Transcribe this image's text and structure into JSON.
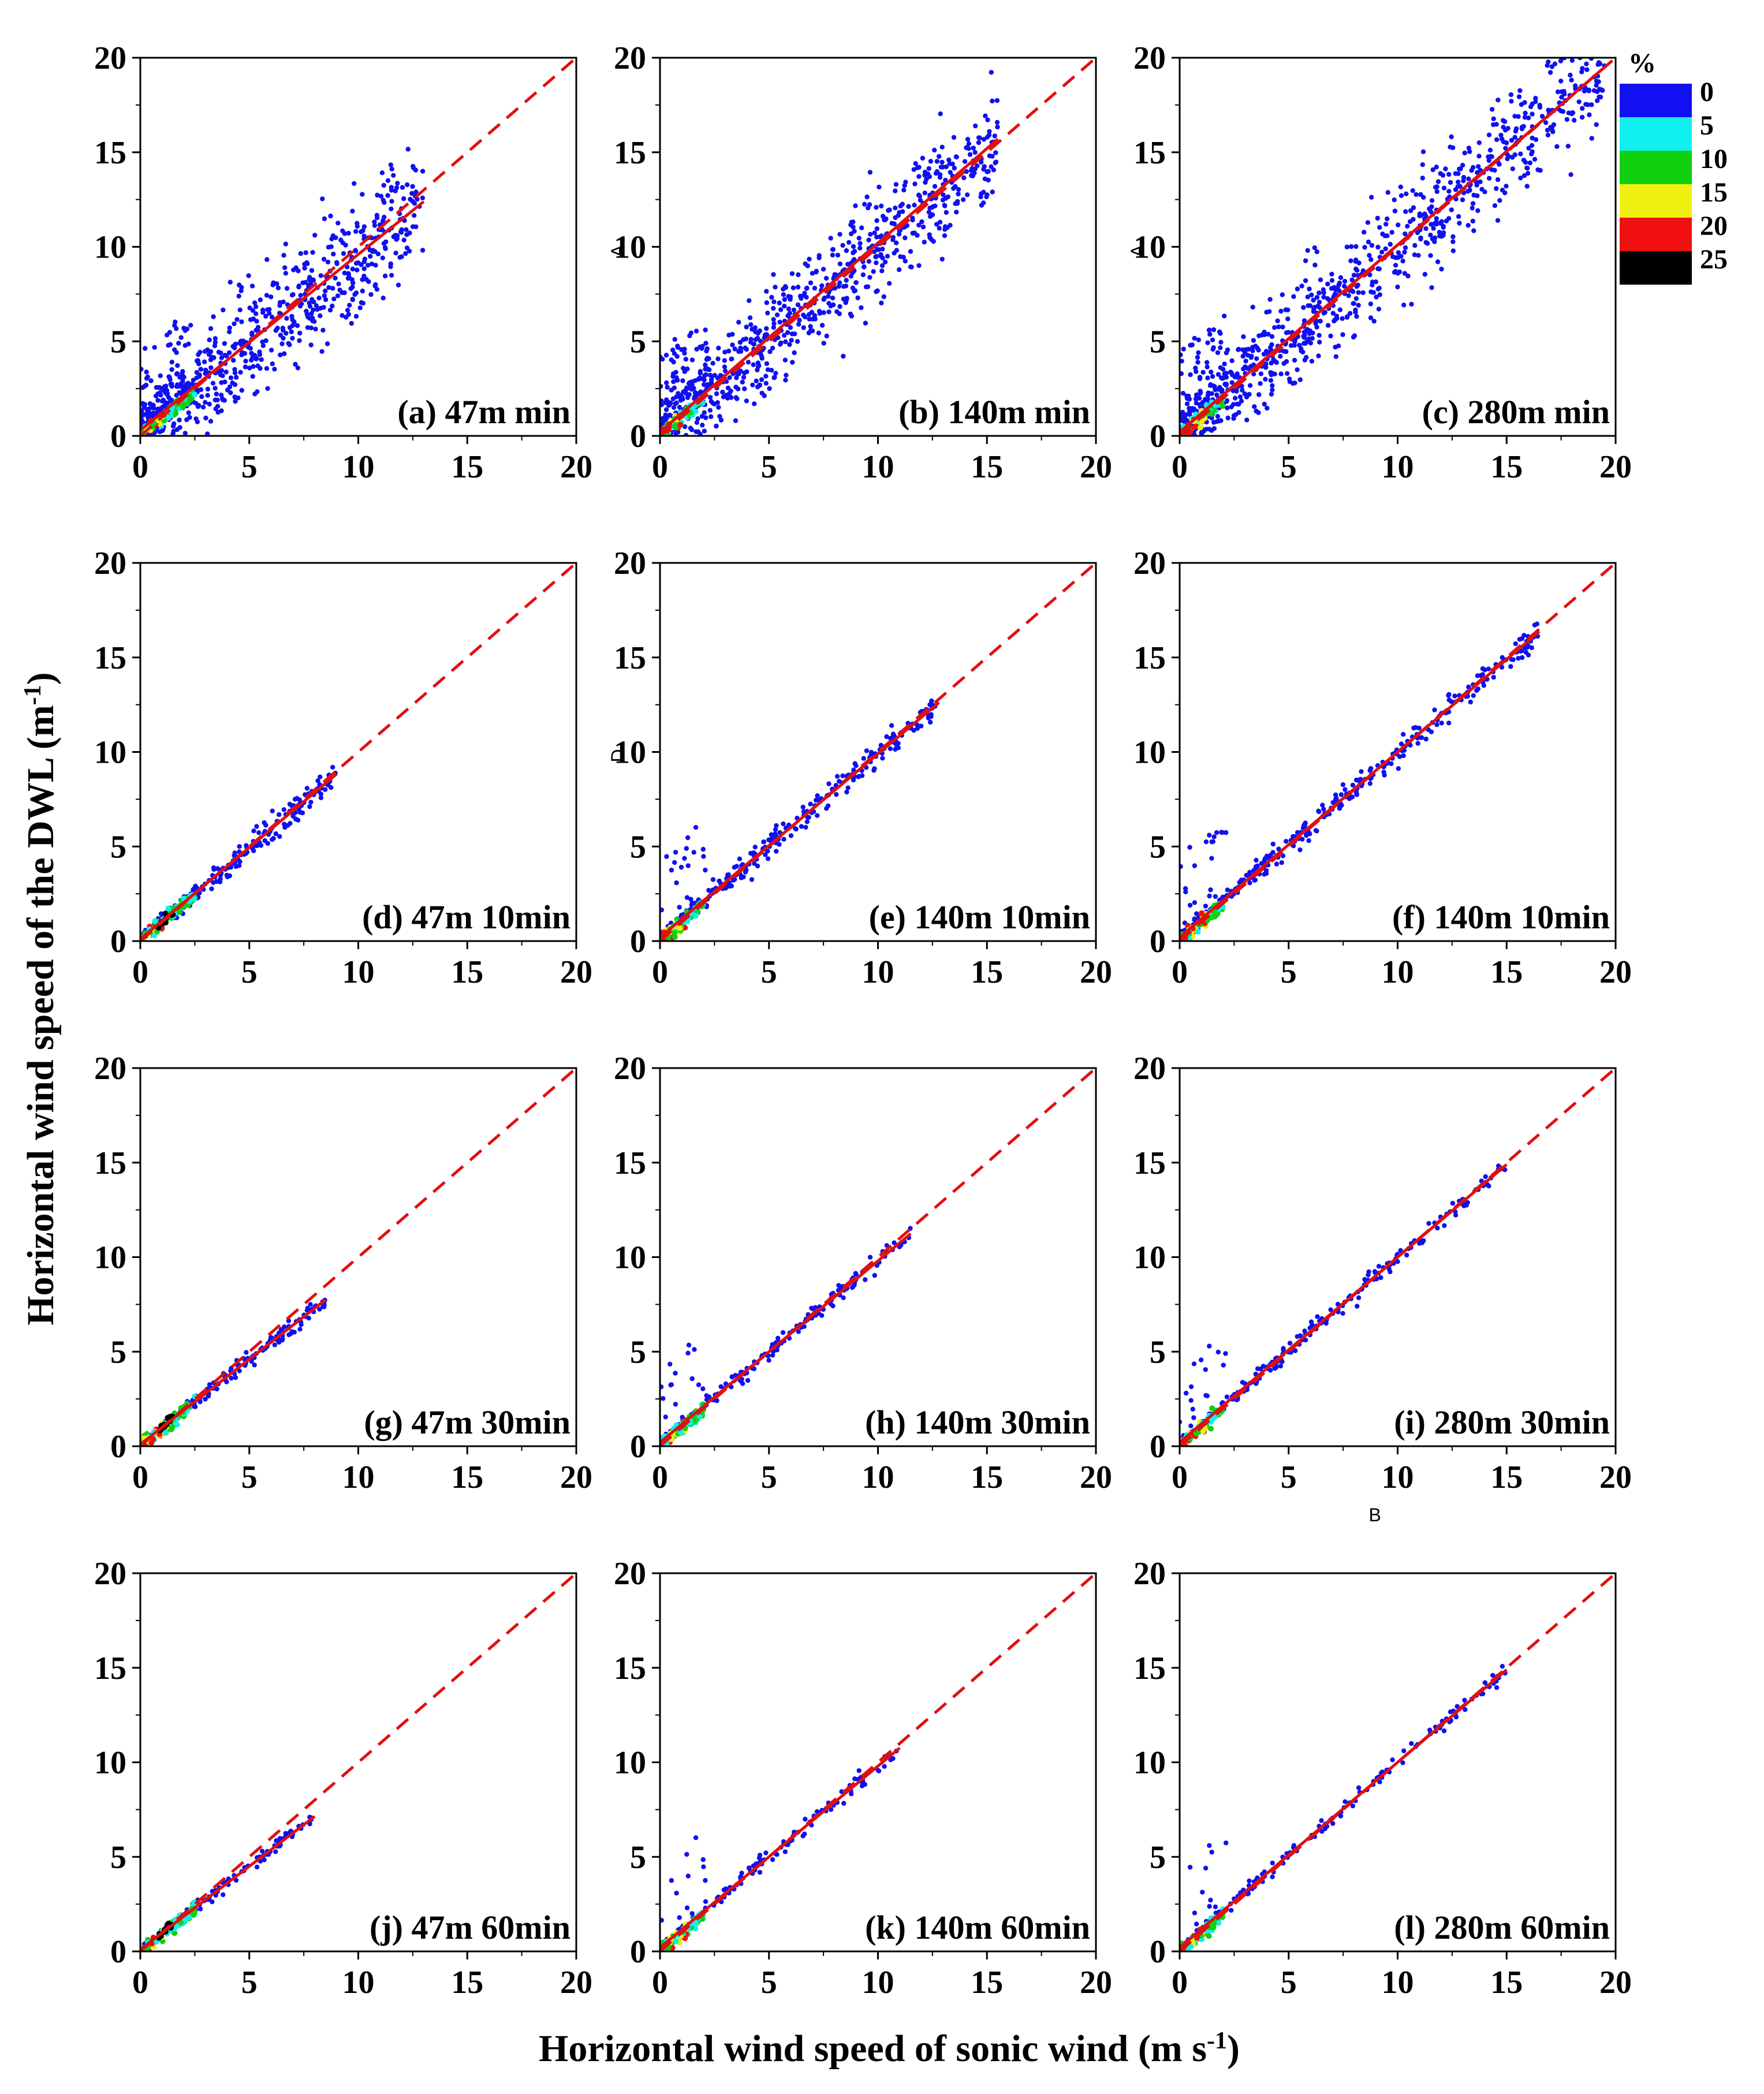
{
  "chart_data": {
    "type": "scatter",
    "description_axes": {
      "xlabel_main": "Horizontal wind speed of sonic wind (m s",
      "xlabel_sup": "-1",
      "xlabel_end": ")",
      "ylabel_main": "Horizontal wind speed of the DWL (m",
      "ylabel_sup": "-1",
      "ylabel_end": ")"
    },
    "xlim": [
      0,
      20
    ],
    "ylim": [
      0,
      20
    ],
    "ticks": [
      0,
      5,
      10,
      15,
      20
    ],
    "colors": {
      "dots": "#1010f0",
      "line": "#e01010",
      "c5": "#10f0f0",
      "c10": "#10d010",
      "c15": "#f0f010",
      "c20": "#f01010",
      "c25": "#000000"
    },
    "legend": {
      "title": "%",
      "levels": [
        "0",
        "5",
        "10",
        "15",
        "20",
        "25"
      ],
      "colors": [
        "#1010f0",
        "#10f0f0",
        "#10d010",
        "#f0f010",
        "#f01010",
        "#000000"
      ]
    },
    "panels": [
      {
        "label": "(a) 47m min",
        "xmax": 13,
        "spread": 2.2,
        "slope": 0.93,
        "intercept": 0.3,
        "points": 700,
        "dense": 2.5,
        "noise_low": true
      },
      {
        "label": "(b) 140m min",
        "xmax": 15.5,
        "spread": 2.0,
        "slope": 1.0,
        "intercept": 0.2,
        "points": 800,
        "dense": 2.0,
        "noise_low": true
      },
      {
        "label": "(c) 280m min",
        "xmax": 19.5,
        "spread": 1.9,
        "slope": 0.99,
        "intercept": 0.2,
        "points": 900,
        "dense": 2.0,
        "noise_low": true
      },
      {
        "label": "(d) 47m 10min",
        "xmax": 9,
        "spread": 0.45,
        "slope": 0.97,
        "intercept": 0.1,
        "points": 260,
        "dense": 2.5,
        "noise_low": false
      },
      {
        "label": "(e) 140m 10min",
        "xmax": 12.8,
        "spread": 0.45,
        "slope": 0.97,
        "intercept": 0.2,
        "points": 300,
        "dense": 2.0,
        "noise_low": true
      },
      {
        "label": "(f) 140m 10min",
        "xmax": 16.5,
        "spread": 0.45,
        "slope": 0.98,
        "intercept": 0.2,
        "points": 360,
        "dense": 2.0,
        "noise_low": true
      },
      {
        "label": "(g) 47m 30min",
        "xmax": 8.5,
        "spread": 0.3,
        "slope": 0.9,
        "intercept": 0.1,
        "points": 150,
        "dense": 2.5,
        "noise_low": false
      },
      {
        "label": "(h) 140m 30min",
        "xmax": 11.5,
        "spread": 0.35,
        "slope": 0.96,
        "intercept": 0.2,
        "points": 190,
        "dense": 2.0,
        "noise_low": true
      },
      {
        "label": "(i) 280m 30min",
        "xmax": 15,
        "spread": 0.35,
        "slope": 0.98,
        "intercept": 0.2,
        "points": 220,
        "dense": 2.0,
        "noise_low": true
      },
      {
        "label": "(j) 47m 60min",
        "xmax": 8,
        "spread": 0.25,
        "slope": 0.88,
        "intercept": 0.1,
        "points": 110,
        "dense": 2.5,
        "noise_low": false
      },
      {
        "label": "(k) 140m 60min",
        "xmax": 11,
        "spread": 0.3,
        "slope": 0.96,
        "intercept": 0.2,
        "points": 140,
        "dense": 2.0,
        "noise_low": true
      },
      {
        "label": "(l) 280m 60min",
        "xmax": 15,
        "spread": 0.3,
        "slope": 0.98,
        "intercept": 0.2,
        "points": 160,
        "dense": 2.0,
        "noise_low": true
      }
    ],
    "stray_marks": [
      {
        "panel": 1,
        "text": "A"
      },
      {
        "panel": 2,
        "text": "A"
      },
      {
        "panel": 4,
        "text": "D"
      },
      {
        "panel": 8,
        "text": "B"
      }
    ]
  }
}
